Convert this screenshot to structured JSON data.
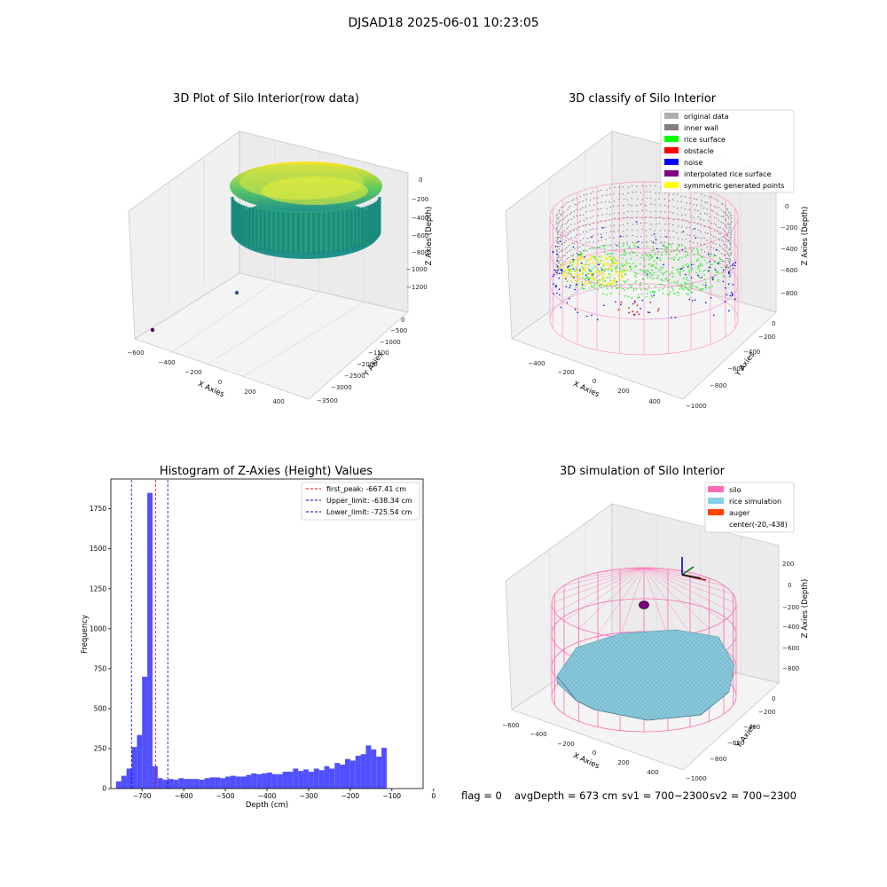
{
  "figure": {
    "suptitle": "DJSAD18 2025-06-01 10:23:05",
    "footer": {
      "flag": "flag = 0",
      "avg_depth": "avgDepth = 673 cm",
      "sv1": "sv1 = 700~2300",
      "sv2": "sv2 = 700~2300"
    }
  },
  "chart_data": [
    {
      "type": "scatter",
      "projection": "3d",
      "title": "3D Plot of Silo Interior(row data)",
      "xlabel": "X Axies",
      "ylabel": "Y Axies",
      "zlabel": "Z Axies (Depth)",
      "xticks": [
        "−600",
        "−400",
        "−200",
        "0",
        "200",
        "400"
      ],
      "yticks": [
        "0",
        "−500",
        "−1000",
        "−1500",
        "−2000",
        "−2500",
        "−3000",
        "−3500"
      ],
      "zticks": [
        "0",
        "−200",
        "−400",
        "−600",
        "−800",
        "−1000",
        "−1200"
      ],
      "colormap": [
        "#440154",
        "#21918c",
        "#5ec962",
        "#fde725"
      ],
      "outliers": [
        {
          "x": -550,
          "y": -3500,
          "z": -1300
        },
        {
          "x": -100,
          "y": -2000,
          "z": -1100
        }
      ]
    },
    {
      "type": "scatter",
      "projection": "3d",
      "title": "3D classify of Silo Interior",
      "xlabel": "X Axies",
      "ylabel": "Y Axies",
      "zlabel": "Z Axies (Depth)",
      "xticks": [
        "−400",
        "−200",
        "0",
        "200",
        "400"
      ],
      "yticks": [
        "0",
        "−200",
        "−400",
        "−600",
        "−800",
        "−1000"
      ],
      "zticks": [
        "0",
        "−200",
        "−400",
        "−600",
        "−800"
      ],
      "legend_position": "top-right",
      "legend": [
        {
          "label": "original data",
          "color": "#b0b0b0"
        },
        {
          "label": "inner wall",
          "color": "#808080"
        },
        {
          "label": "rice surface",
          "color": "#00ff00"
        },
        {
          "label": "obstacle",
          "color": "#ff0000"
        },
        {
          "label": "noise",
          "color": "#0000ff"
        },
        {
          "label": "interpolated rice surface",
          "color": "#800080"
        },
        {
          "label": "symmetric generated points",
          "color": "#ffff00"
        }
      ]
    },
    {
      "type": "bar",
      "title": "Histogram of Z-Axies (Height) Values",
      "xlabel": "Depth (cm)",
      "ylabel": "Frequency",
      "xlim": [
        -775,
        -25
      ],
      "ylim": [
        0,
        1937
      ],
      "xticks": [
        -700,
        -600,
        -500,
        -400,
        -300,
        -200,
        -100,
        0
      ],
      "yticks": [
        0,
        250,
        500,
        750,
        1000,
        1250,
        1500,
        1750
      ],
      "bin_width": 12.5,
      "bin_start": -762.5,
      "bar_color": "#5050ff",
      "values": [
        45,
        80,
        125,
        260,
        335,
        700,
        1850,
        140,
        65,
        55,
        60,
        55,
        65,
        60,
        60,
        60,
        55,
        65,
        70,
        70,
        65,
        75,
        80,
        75,
        75,
        85,
        95,
        90,
        95,
        100,
        90,
        90,
        105,
        105,
        125,
        110,
        120,
        105,
        125,
        115,
        140,
        125,
        160,
        150,
        185,
        175,
        205,
        215,
        270,
        245,
        200,
        255
      ],
      "vlines": [
        {
          "label": "first_peak: -667.41 cm",
          "x": -667.41,
          "color": "#ff0000"
        },
        {
          "label": "Upper_limit: -638.34 cm",
          "x": -638.34,
          "color": "#0000cc"
        },
        {
          "label": "Lower_limit: -725.54 cm",
          "x": -725.54,
          "color": "#0000cc"
        }
      ],
      "legend_position": "top-right"
    },
    {
      "type": "area",
      "projection": "3d",
      "title": "3D simulation of Silo Interior",
      "xlabel": "X Axies",
      "ylabel": "Y Axies",
      "zlabel": "Z Axies (Depth)",
      "xticks": [
        "−600",
        "−400",
        "−200",
        "0",
        "200",
        "400"
      ],
      "yticks": [
        "0",
        "−200",
        "−400",
        "−600",
        "−800",
        "−1000"
      ],
      "zticks": [
        "200",
        "0",
        "−200",
        "−400",
        "−600",
        "−800"
      ],
      "legend_position": "top-right",
      "legend": [
        {
          "label": "silo",
          "color": "#ff69b4"
        },
        {
          "label": "rice simulation",
          "color": "#87ceeb"
        },
        {
          "label": "auger",
          "color": "#ff4500"
        },
        {
          "label": "center(-20,-438)",
          "color": ""
        }
      ]
    }
  ]
}
